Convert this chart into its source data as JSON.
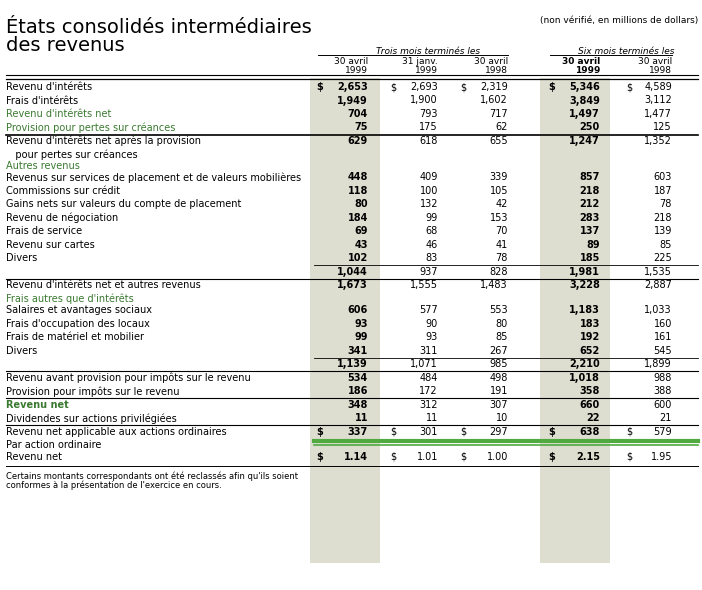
{
  "title_line1": "États consolidés intermédiaires",
  "title_line2": "des revenus",
  "subtitle": "(non vérifié, en millions de dollars)",
  "col_group1_label": "Trois mois terminés les",
  "col_group2_label": "Six mois terminés les",
  "col_headers": [
    [
      "30 avril",
      "1999"
    ],
    [
      "31 janv.",
      "1999"
    ],
    [
      "30 avril",
      "1998"
    ],
    [
      "30 avril",
      "1999"
    ],
    [
      "30 avril",
      "1998"
    ]
  ],
  "rows": [
    {
      "label": "Revenu d'intérêts",
      "type": "data_dollar",
      "values": [
        "2,653",
        "2,693",
        "2,319",
        "5,346",
        "4,589"
      ],
      "bold_vals": [
        true,
        false,
        false,
        true,
        false
      ]
    },
    {
      "label": "Frais d'intérêts",
      "type": "data",
      "values": [
        "1,949",
        "1,900",
        "1,602",
        "3,849",
        "3,112"
      ],
      "bold_vals": [
        true,
        false,
        false,
        true,
        false
      ]
    },
    {
      "label": "Revenu d'intérêts net",
      "type": "green_label",
      "values": [
        "704",
        "793",
        "717",
        "1,497",
        "1,477"
      ],
      "bold_vals": [
        true,
        false,
        false,
        true,
        false
      ]
    },
    {
      "label": "Provision pour pertes sur créances",
      "type": "green_label",
      "values": [
        "75",
        "175",
        "62",
        "250",
        "125"
      ],
      "bold_vals": [
        true,
        false,
        false,
        true,
        false
      ]
    },
    {
      "label": "Revenu d'intérêts net après la provision",
      "label2": "   pour pertes sur créances",
      "type": "data_thick_above",
      "values": [
        "629",
        "618",
        "655",
        "1,247",
        "1,352"
      ],
      "bold_vals": [
        true,
        false,
        false,
        true,
        false
      ]
    },
    {
      "label": "Autres revenus",
      "type": "green_section",
      "values": [
        "",
        "",
        "",
        "",
        ""
      ]
    },
    {
      "label": "Revenus sur services de placement et de valeurs mobilières",
      "type": "data",
      "values": [
        "448",
        "409",
        "339",
        "857",
        "603"
      ],
      "bold_vals": [
        true,
        false,
        false,
        true,
        false
      ]
    },
    {
      "label": "Commissions sur crédit",
      "type": "data",
      "values": [
        "118",
        "100",
        "105",
        "218",
        "187"
      ],
      "bold_vals": [
        true,
        false,
        false,
        true,
        false
      ]
    },
    {
      "label": "Gains nets sur valeurs du compte de placement",
      "type": "data",
      "values": [
        "80",
        "132",
        "42",
        "212",
        "78"
      ],
      "bold_vals": [
        true,
        false,
        false,
        true,
        false
      ]
    },
    {
      "label": "Revenu de négociation",
      "type": "data",
      "values": [
        "184",
        "99",
        "153",
        "283",
        "218"
      ],
      "bold_vals": [
        true,
        false,
        false,
        true,
        false
      ]
    },
    {
      "label": "Frais de service",
      "type": "data",
      "values": [
        "69",
        "68",
        "70",
        "137",
        "139"
      ],
      "bold_vals": [
        true,
        false,
        false,
        true,
        false
      ]
    },
    {
      "label": "Revenu sur cartes",
      "type": "data",
      "values": [
        "43",
        "46",
        "41",
        "89",
        "85"
      ],
      "bold_vals": [
        true,
        false,
        false,
        true,
        false
      ]
    },
    {
      "label": "Divers",
      "type": "data",
      "values": [
        "102",
        "83",
        "78",
        "185",
        "225"
      ],
      "bold_vals": [
        true,
        false,
        false,
        true,
        false
      ]
    },
    {
      "label": "",
      "type": "subtotal",
      "values": [
        "1,044",
        "937",
        "828",
        "1,981",
        "1,535"
      ],
      "bold_vals": [
        true,
        false,
        false,
        true,
        false
      ]
    },
    {
      "label": "Revenu d'intérêts net et autres revenus",
      "type": "data_thick",
      "values": [
        "1,673",
        "1,555",
        "1,483",
        "3,228",
        "2,887"
      ],
      "bold_vals": [
        true,
        false,
        false,
        true,
        false
      ]
    },
    {
      "label": "Frais autres que d'intérêts",
      "type": "green_section",
      "values": [
        "",
        "",
        "",
        "",
        ""
      ]
    },
    {
      "label": "Salaires et avantages sociaux",
      "type": "data",
      "values": [
        "606",
        "577",
        "553",
        "1,183",
        "1,033"
      ],
      "bold_vals": [
        true,
        false,
        false,
        true,
        false
      ]
    },
    {
      "label": "Frais d'occupation des locaux",
      "type": "data",
      "values": [
        "93",
        "90",
        "80",
        "183",
        "160"
      ],
      "bold_vals": [
        true,
        false,
        false,
        true,
        false
      ]
    },
    {
      "label": "Frais de matériel et mobilier",
      "type": "data",
      "values": [
        "99",
        "93",
        "85",
        "192",
        "161"
      ],
      "bold_vals": [
        true,
        false,
        false,
        true,
        false
      ]
    },
    {
      "label": "Divers",
      "type": "data",
      "values": [
        "341",
        "311",
        "267",
        "652",
        "545"
      ],
      "bold_vals": [
        true,
        false,
        false,
        true,
        false
      ]
    },
    {
      "label": "",
      "type": "subtotal",
      "values": [
        "1,139",
        "1,071",
        "985",
        "2,210",
        "1,899"
      ],
      "bold_vals": [
        true,
        false,
        false,
        true,
        false
      ]
    },
    {
      "label": "Revenu avant provision pour impôts sur le revenu",
      "type": "data_thick",
      "values": [
        "534",
        "484",
        "498",
        "1,018",
        "988"
      ],
      "bold_vals": [
        true,
        false,
        false,
        true,
        false
      ]
    },
    {
      "label": "Provision pour impôts sur le revenu",
      "type": "data",
      "values": [
        "186",
        "172",
        "191",
        "358",
        "388"
      ],
      "bold_vals": [
        true,
        false,
        false,
        true,
        false
      ]
    },
    {
      "label": "Revenu net",
      "type": "green_label_thick",
      "values": [
        "348",
        "312",
        "307",
        "660",
        "600"
      ],
      "bold_vals": [
        true,
        false,
        false,
        true,
        false
      ]
    },
    {
      "label": "Dividendes sur actions privilégiées",
      "type": "data",
      "values": [
        "11",
        "11",
        "10",
        "22",
        "21"
      ],
      "bold_vals": [
        true,
        false,
        false,
        true,
        false
      ]
    },
    {
      "label": "Revenu net applicable aux actions ordinaires",
      "type": "data_dollar_thick",
      "values": [
        "337",
        "301",
        "297",
        "638",
        "579"
      ],
      "bold_vals": [
        true,
        false,
        false,
        true,
        false
      ]
    },
    {
      "label": "Par action ordinaire",
      "type": "section_label",
      "values": [
        "",
        "",
        "",
        "",
        ""
      ]
    },
    {
      "label": "Revenu net",
      "type": "data_dollar_decimal",
      "values": [
        "1.14",
        "1.01",
        "1.00",
        "2.15",
        "1.95"
      ],
      "bold_vals": [
        true,
        false,
        false,
        true,
        false
      ]
    }
  ],
  "footnote1": "Certains montants correspondants ont été reclassés afin qu'ils soient",
  "footnote2": "conformes à la présentation de l'exercice en cours.",
  "green_color": "#3a7a30",
  "hl_bg": "#deded0",
  "green_line_color": "#50aa40",
  "bg_color": "#ffffff"
}
